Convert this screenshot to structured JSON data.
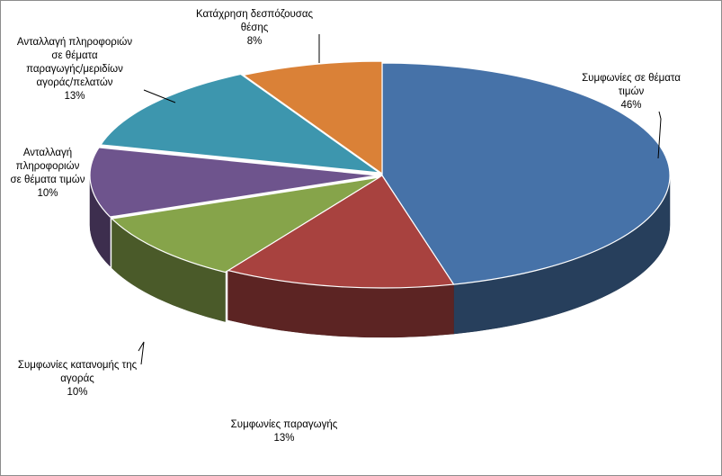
{
  "chart_data": {
    "type": "pie",
    "style": "3d-exploded-pie",
    "title": "",
    "slices": [
      {
        "label": "Συμφωνίες σε θέματα τιμών",
        "value": 46,
        "pct_text": "46%",
        "color": "#4672A8"
      },
      {
        "label": "Συμφωνίες παραγωγής",
        "value": 13,
        "pct_text": "13%",
        "color": "#A8423F"
      },
      {
        "label": "Συμφωνίες κατανομής της αγοράς",
        "value": 10,
        "pct_text": "10%",
        "color": "#86A44A"
      },
      {
        "label": "Ανταλλαγή πληροφοριών σε θέματα τιμών",
        "value": 10,
        "pct_text": "10%",
        "color": "#6E548D"
      },
      {
        "label": "Ανταλλαγή πληροφοριών σε θέματα παραγωγής/μεριδίων αγοράς/πελατών",
        "value": 13,
        "pct_text": "13%",
        "color": "#3D96AE"
      },
      {
        "label": "Κατάχρηση δεσπόζουσας θέσης",
        "value": 8,
        "pct_text": "8%",
        "color": "#DA8137"
      }
    ],
    "data_labels": [
      {
        "slice": 0,
        "lines": [
          "Συμφωνίες σε θέματα",
          "τιμών",
          "46%"
        ]
      },
      {
        "slice": 1,
        "lines": [
          "Συμφωνίες παραγωγής",
          "13%"
        ]
      },
      {
        "slice": 2,
        "lines": [
          "Συμφωνίες κατανομής της",
          "αγοράς",
          "10%"
        ]
      },
      {
        "slice": 3,
        "lines": [
          "Ανταλλαγή",
          "πληροφοριών",
          "σε θέματα τιμών",
          "10%"
        ]
      },
      {
        "slice": 4,
        "lines": [
          "Ανταλλαγή  πληροφοριών",
          "σε θέματα",
          "παραγωγής/μεριδίων",
          "αγοράς/πελατών",
          "13%"
        ]
      },
      {
        "slice": 5,
        "lines": [
          "Κατάχρηση δεσπόζουσας",
          "θέσης",
          "8%"
        ]
      }
    ]
  }
}
